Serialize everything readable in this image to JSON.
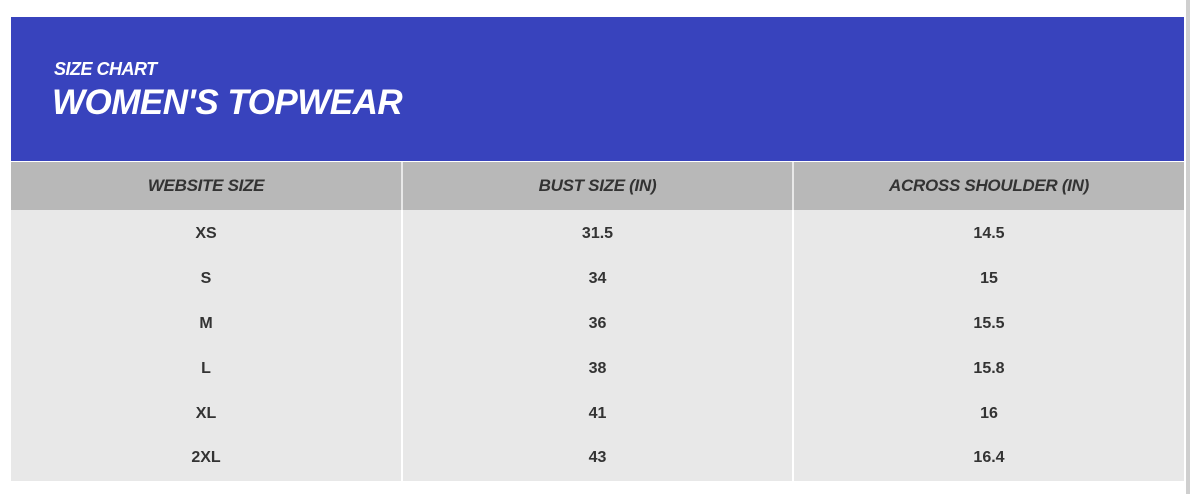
{
  "header": {
    "subtitle": "SIZE CHART",
    "title": "WOMEN'S TOPWEAR"
  },
  "colors": {
    "banner": "#3843bd",
    "header_row": "#b8b8b8",
    "body_row": "#e8e8e8"
  },
  "table": {
    "columns": [
      "WEBSITE SIZE",
      "BUST SIZE (IN)",
      "ACROSS SHOULDER (IN)"
    ],
    "rows": [
      [
        "XS",
        "31.5",
        "14.5"
      ],
      [
        "S",
        "34",
        "15"
      ],
      [
        "M",
        "36",
        "15.5"
      ],
      [
        "L",
        "38",
        "15.8"
      ],
      [
        "XL",
        "41",
        "16"
      ],
      [
        "2XL",
        "43",
        "16.4"
      ]
    ]
  }
}
